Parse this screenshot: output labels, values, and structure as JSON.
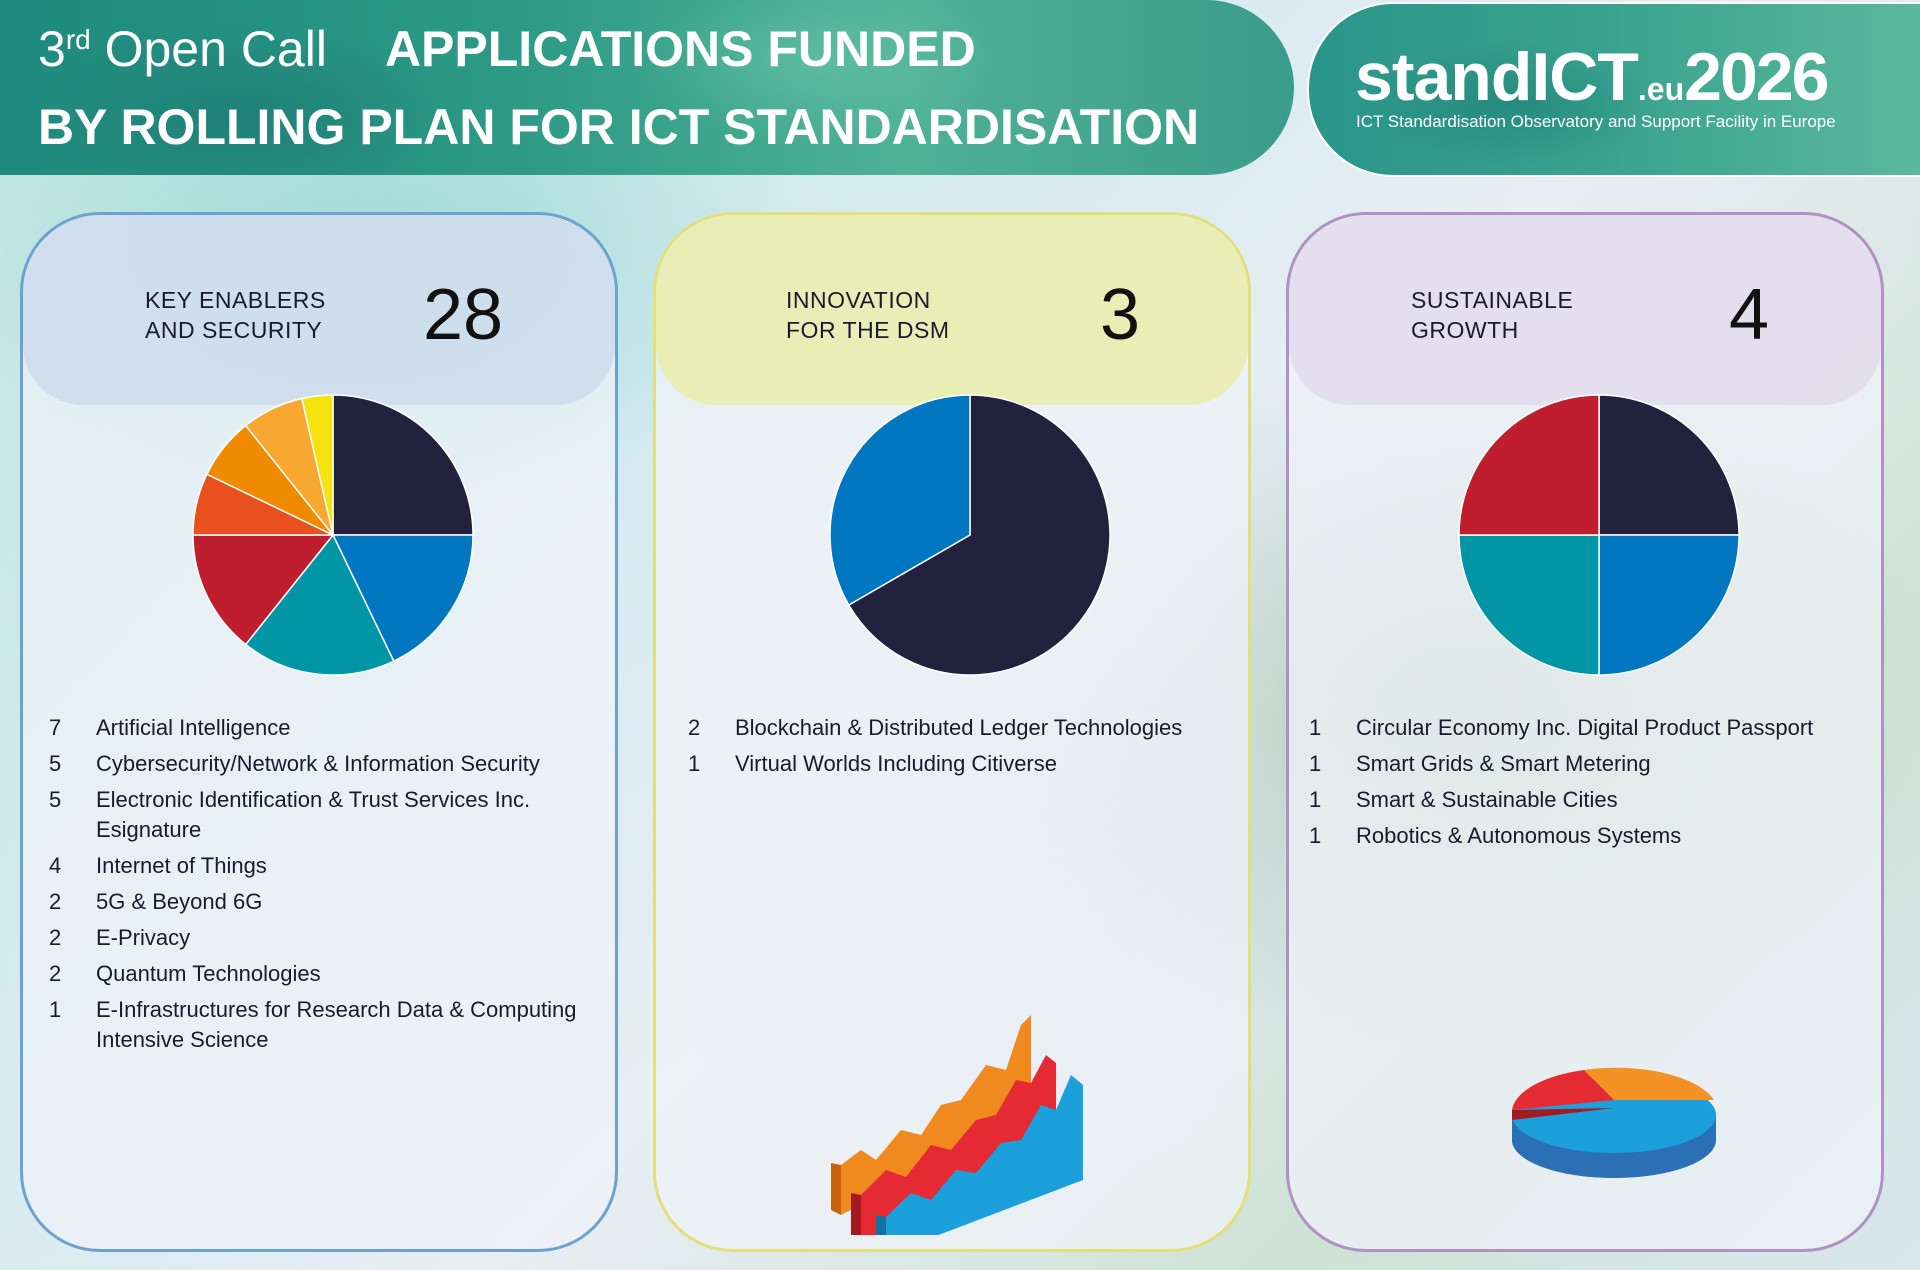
{
  "header": {
    "call_number": "3",
    "call_superscript": "rd",
    "call_rest": " Open Call",
    "title_line1": "APPLICATIONS FUNDED",
    "title_line2": "BY ROLLING PLAN FOR ICT STANDARDISATION"
  },
  "logo": {
    "stand": "stand",
    "ict": "ICT",
    "eu": ".eu",
    "year": "2026",
    "tagline": "ICT Standardisation Observatory and Support Facility in Europe"
  },
  "colors": {
    "navy": "#22223f",
    "blue": "#0077c0",
    "teal": "#0096a6",
    "red": "#be1e2d",
    "orange_red": "#e8501e",
    "orange": "#f08a00",
    "light_orange": "#f7a830",
    "yellow": "#f5e30f",
    "panel1_border": "#6da2d0",
    "panel2_border": "#e2e07a",
    "panel3_border": "#b091c2"
  },
  "panels": [
    {
      "label_line1": "KEY ENABLERS",
      "label_line2": "AND SECURITY",
      "count": "28",
      "items": [
        {
          "count": "7",
          "label": "Artificial Intelligence"
        },
        {
          "count": "5",
          "label": "Cybersecurity/Network & Information Security"
        },
        {
          "count": "5",
          "label": "Electronic Identification & Trust Services Inc. Esignature"
        },
        {
          "count": "4",
          "label": "Internet of Things"
        },
        {
          "count": "2",
          "label": "5G & Beyond 6G"
        },
        {
          "count": "2",
          "label": "E-Privacy"
        },
        {
          "count": "2",
          "label": "Quantum Technologies"
        },
        {
          "count": "1",
          "label": "E-Infrastructures for Research Data & Computing Intensive Science"
        }
      ],
      "decoration": "pie-chart-image"
    },
    {
      "label_line1": "INNOVATION",
      "label_line2": "FOR THE DSM",
      "count": "3",
      "items": [
        {
          "count": "2",
          "label": "Blockchain & Distributed Ledger Technologies"
        },
        {
          "count": "1",
          "label": "Virtual Worlds Including Citiverse"
        }
      ],
      "decoration": "area-chart-3d-icon"
    },
    {
      "label_line1": "SUSTAINABLE",
      "label_line2": "GROWTH",
      "count": "4",
      "items": [
        {
          "count": "1",
          "label": "Circular Economy Inc. Digital Product Passport"
        },
        {
          "count": "1",
          "label": "Smart Grids & Smart Metering"
        },
        {
          "count": "1",
          "label": "Smart & Sustainable Cities"
        },
        {
          "count": "1",
          "label": "Robotics & Autonomous Systems"
        }
      ],
      "decoration": "pie-chart-3d-icon"
    }
  ],
  "chart_data": [
    {
      "type": "pie",
      "title": "KEY ENABLERS AND SECURITY",
      "categories": [
        "Artificial Intelligence",
        "Cybersecurity/Network & Information Security",
        "Electronic Identification & Trust Services Inc. Esignature",
        "Internet of Things",
        "5G & Beyond 6G",
        "E-Privacy",
        "Quantum Technologies",
        "E-Infrastructures for Research Data & Computing Intensive Science"
      ],
      "values": [
        7,
        5,
        5,
        4,
        2,
        2,
        2,
        1
      ],
      "colors": [
        "#22223f",
        "#0077c0",
        "#0096a6",
        "#be1e2d",
        "#e8501e",
        "#f08a00",
        "#f7a830",
        "#f5e30f"
      ]
    },
    {
      "type": "pie",
      "title": "INNOVATION FOR THE DSM",
      "categories": [
        "Blockchain & Distributed Ledger Technologies",
        "Virtual Worlds Including Citiverse"
      ],
      "values": [
        2,
        1
      ],
      "colors": [
        "#22223f",
        "#0077c0"
      ]
    },
    {
      "type": "pie",
      "title": "SUSTAINABLE GROWTH",
      "categories": [
        "Circular Economy Inc. Digital Product Passport",
        "Smart Grids & Smart Metering",
        "Smart & Sustainable Cities",
        "Robotics & Autonomous Systems"
      ],
      "values": [
        1,
        1,
        1,
        1
      ],
      "colors": [
        "#22223f",
        "#0077c0",
        "#0096a6",
        "#be1e2d"
      ]
    }
  ]
}
